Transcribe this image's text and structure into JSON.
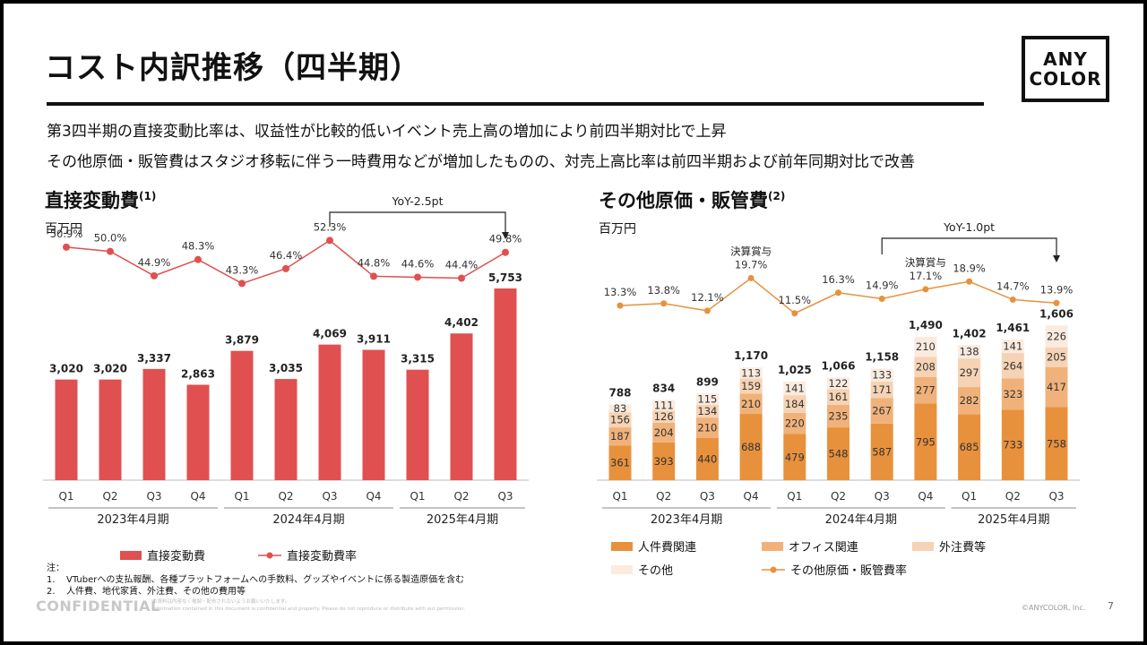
{
  "header": {
    "title": "コスト内訳推移（四半期）",
    "logo_line1": "ANY",
    "logo_line2": "COLOR",
    "subtitle1": "第3四半期の直接変動比率は、収益性が比較的低いイベント売上高の増加により前四半期対比で上昇",
    "subtitle2": "その他原価・販管費はスタジオ移転に伴う一時費用などが増加したものの、対売上高比率は前四半期および前年同期対比で改善"
  },
  "chart_data": [
    {
      "type": "bar",
      "title": "直接変動費",
      "title_note": "(1)",
      "unit": "百万円",
      "categories": [
        "Q1",
        "Q2",
        "Q3",
        "Q4",
        "Q1",
        "Q2",
        "Q3",
        "Q4",
        "Q1",
        "Q2",
        "Q3"
      ],
      "fiscal_years": [
        {
          "label": "2023年4月期",
          "start": 0,
          "end": 3
        },
        {
          "label": "2024年4月期",
          "start": 4,
          "end": 7
        },
        {
          "label": "2025年4月期",
          "start": 8,
          "end": 10
        }
      ],
      "series": [
        {
          "name": "直接変動費",
          "type": "bar",
          "color": "#e05050",
          "values": [
            3020,
            3020,
            3337,
            2863,
            3879,
            3035,
            4069,
            3911,
            3315,
            4402,
            5753
          ]
        },
        {
          "name": "直接変動費率",
          "type": "line",
          "color": "#e05050",
          "values": [
            50.9,
            50.0,
            44.9,
            48.3,
            43.3,
            46.4,
            52.3,
            44.8,
            44.6,
            44.4,
            49.8
          ]
        }
      ],
      "bar_labels": [
        "3,020",
        "3,020",
        "3,337",
        "2,863",
        "3,879",
        "3,035",
        "4,069",
        "3,911",
        "3,315",
        "4,402",
        "5,753"
      ],
      "rate_labels": [
        "50.9%",
        "50.0%",
        "44.9%",
        "48.3%",
        "43.3%",
        "46.4%",
        "52.3%",
        "44.8%",
        "44.6%",
        "44.4%",
        "49.8%"
      ],
      "annotation": {
        "text": "YoY-2.5pt",
        "from": 6,
        "to": 10
      },
      "legend_position": "bottom"
    },
    {
      "type": "bar",
      "stacked": true,
      "title": "その他原価・販管費",
      "title_note": "(2)",
      "unit": "百万円",
      "categories": [
        "Q1",
        "Q2",
        "Q3",
        "Q4",
        "Q1",
        "Q2",
        "Q3",
        "Q4",
        "Q1",
        "Q2",
        "Q3"
      ],
      "fiscal_years": [
        {
          "label": "2023年4月期",
          "start": 0,
          "end": 3
        },
        {
          "label": "2024年4月期",
          "start": 4,
          "end": 7
        },
        {
          "label": "2025年4月期",
          "start": 8,
          "end": 10
        }
      ],
      "series": [
        {
          "name": "人件費関連",
          "color": "#e8913c",
          "text_color": "#333333",
          "values": [
            361,
            393,
            440,
            688,
            479,
            548,
            587,
            795,
            685,
            733,
            758
          ]
        },
        {
          "name": "オフィス関連",
          "color": "#f0b27a",
          "text_color": "#333333",
          "values": [
            187,
            204,
            210,
            210,
            220,
            235,
            267,
            277,
            282,
            323,
            417
          ]
        },
        {
          "name": "外注費等",
          "color": "#f6d3b4",
          "text_color": "#333333",
          "values": [
            156,
            126,
            134,
            159,
            184,
            161,
            171,
            208,
            297,
            264,
            205
          ]
        },
        {
          "name": "その他",
          "color": "#fbebdf",
          "text_color": "#333333",
          "values": [
            83,
            111,
            115,
            113,
            141,
            122,
            133,
            210,
            138,
            141,
            226
          ]
        }
      ],
      "totals": [
        "788",
        "834",
        "899",
        "1,170",
        "1,025",
        "1,066",
        "1,158",
        "1,490",
        "1,402",
        "1,461",
        "1,606"
      ],
      "rate": {
        "name": "その他原価・販管費率",
        "color": "#e8913c",
        "values": [
          13.3,
          13.8,
          12.1,
          19.7,
          11.5,
          16.3,
          14.9,
          17.1,
          18.9,
          14.7,
          13.9
        ]
      },
      "rate_labels": [
        "13.3%",
        "13.8%",
        "12.1%",
        "19.7%",
        "11.5%",
        "16.3%",
        "14.9%",
        "17.1%",
        "18.9%",
        "14.7%",
        "13.9%"
      ],
      "rate_annotations": [
        {
          "index": 3,
          "text": "決算賞与"
        },
        {
          "index": 7,
          "text": "決算賞与"
        }
      ],
      "annotation": {
        "text": "YoY-1.0pt",
        "from": 6,
        "to": 10
      },
      "legend_position": "bottom"
    }
  ],
  "legend": {
    "left": [
      "直接変動費",
      "直接変動費率"
    ],
    "right": [
      "人件費関連",
      "オフィス関連",
      "外注費等",
      "その他",
      "その他原価・販管費率"
    ]
  },
  "notes": {
    "heading": "注：",
    "n1_num": "1.",
    "n1": "VTuberへの支払報酬、各種プラットフォームへの手数料、グッズやイベントに係る製造原価を含む",
    "n2_num": "2.",
    "n2": "人件費、地代家賃、外注費、その他の費用等"
  },
  "footer": {
    "confidential": "CONFIDENTIAL",
    "disclaimer1": "本資料は内容なく複製・配布されないようお願いいたします。",
    "disclaimer2": "Information contained in this document is confidential and property. Please do not reproduce or distribute with out permission.",
    "copyright": "©ANYCOLOR, Inc.",
    "page": "7"
  }
}
